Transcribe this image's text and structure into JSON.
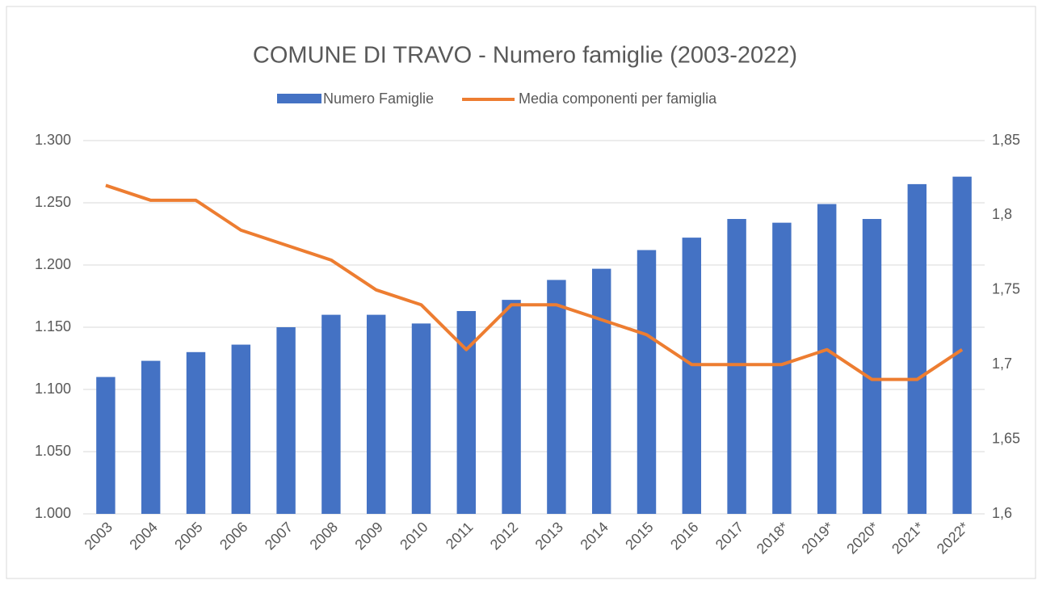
{
  "chart_data": {
    "type": "bar_line",
    "title": "COMUNE DI TRAVO - Numero famiglie (2003-2022)",
    "categories": [
      "2003",
      "2004",
      "2005",
      "2006",
      "2007",
      "2008",
      "2009",
      "2010",
      "2011",
      "2012",
      "2013",
      "2014",
      "2015",
      "2016",
      "2017",
      "2018*",
      "2019*",
      "2020*",
      "2021*",
      "2022*"
    ],
    "series": [
      {
        "name": "Numero Famiglie",
        "color": "#4472c4",
        "type": "bar",
        "axis": "y",
        "values": [
          1110,
          1123,
          1130,
          1136,
          1150,
          1160,
          1160,
          1153,
          1163,
          1172,
          1188,
          1197,
          1212,
          1222,
          1237,
          1234,
          1249,
          1237,
          1265,
          1271
        ]
      },
      {
        "name": "Media componenti per famiglia",
        "color": "#ed7d31",
        "type": "line",
        "axis": "y2",
        "values": [
          1.82,
          1.81,
          1.81,
          1.79,
          1.78,
          1.77,
          1.75,
          1.74,
          1.71,
          1.74,
          1.74,
          1.73,
          1.72,
          1.7,
          1.7,
          1.7,
          1.71,
          1.69,
          1.69,
          1.71
        ]
      }
    ],
    "ylim": [
      1000,
      1300
    ],
    "yticks": [
      {
        "value": 1000,
        "label": "1.000"
      },
      {
        "value": 1050,
        "label": "1.050"
      },
      {
        "value": 1100,
        "label": "1.100"
      },
      {
        "value": 1150,
        "label": "1.150"
      },
      {
        "value": 1200,
        "label": "1.200"
      },
      {
        "value": 1250,
        "label": "1.250"
      },
      {
        "value": 1300,
        "label": "1.300"
      }
    ],
    "y2lim": [
      1.6,
      1.85
    ],
    "y2ticks": [
      {
        "value": 1.6,
        "label": "1,6"
      },
      {
        "value": 1.65,
        "label": "1,65"
      },
      {
        "value": 1.7,
        "label": "1,7"
      },
      {
        "value": 1.75,
        "label": "1,75"
      },
      {
        "value": 1.8,
        "label": "1,8"
      },
      {
        "value": 1.85,
        "label": "1,85"
      }
    ],
    "grid": true,
    "legend": "top"
  }
}
